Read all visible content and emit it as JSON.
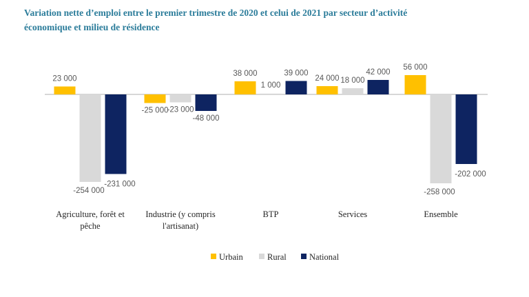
{
  "chart_data": {
    "type": "bar",
    "title": "Variation nette d’emploi entre le premier trimestre de 2020 et celui de 2021 par secteur d’activité économique et milieu de résidence",
    "title_lines": [
      "Variation nette d’emploi entre le premier trimestre  de 2020 et celui de 2021 par secteur  d’activité",
      "économique et milieu de résidence"
    ],
    "categories": [
      [
        "Agriculture, forêt et",
        "pêche"
      ],
      [
        "Industrie (y compris",
        "l'artisanat)"
      ],
      [
        "BTP"
      ],
      [
        "Services"
      ],
      [
        "Ensemble"
      ]
    ],
    "series": [
      {
        "name": "Urbain",
        "color": "#ffc000",
        "values": [
          23000,
          -25000,
          38000,
          24000,
          56000
        ],
        "labels": [
          "23 000",
          "-25 000",
          "38 000",
          "24 000",
          "56 000"
        ]
      },
      {
        "name": "Rural",
        "color": "#d9d9d9",
        "values": [
          -254000,
          -23000,
          1000,
          18000,
          -258000
        ],
        "labels": [
          "-254 000",
          "-23 000",
          "1 000",
          "18 000",
          "-258 000"
        ]
      },
      {
        "name": "National",
        "color": "#0e2461",
        "values": [
          -231000,
          -48000,
          39000,
          42000,
          -202000
        ],
        "labels": [
          "-231 000",
          "-48 000",
          "39 000",
          "42 000",
          "-202 000"
        ]
      }
    ],
    "xlabel": "",
    "ylabel": "",
    "ylim": [
      -260000,
      60000
    ],
    "grid": false,
    "legend_position": "bottom",
    "axis_color": "#bfbfbf"
  }
}
